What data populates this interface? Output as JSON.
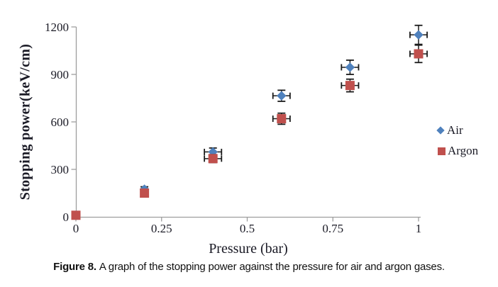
{
  "figure": {
    "caption_label": "Figure 8.",
    "caption_text": "A graph of the stopping power against the pressure for air and argon gases."
  },
  "chart_data": {
    "type": "scatter",
    "title": "",
    "xlabel": "Pressure (bar)",
    "ylabel": "Stopping power(keV/cm)",
    "xlim": [
      0,
      1
    ],
    "ylim": [
      0,
      1200
    ],
    "x_ticks": [
      "0",
      "0.25",
      "0.5",
      "0.75",
      "1"
    ],
    "y_ticks": [
      "0",
      "300",
      "600",
      "900",
      "1200"
    ],
    "grid": false,
    "legend_position": "right",
    "x": [
      0,
      0.2,
      0.4,
      0.6,
      0.8,
      1.0
    ],
    "series": [
      {
        "name": "Air",
        "marker": "diamond",
        "color": "#4F81BD",
        "values": [
          10,
          175,
          410,
          765,
          945,
          1150
        ],
        "y_err": [
          0,
          15,
          25,
          35,
          45,
          60
        ],
        "x_err": [
          0,
          0,
          0.025,
          0.025,
          0.025,
          0.025
        ]
      },
      {
        "name": "Argon",
        "marker": "square",
        "color": "#C0504D",
        "values": [
          10,
          150,
          368,
          620,
          830,
          1030
        ],
        "y_err": [
          0,
          15,
          25,
          35,
          40,
          55
        ],
        "x_err": [
          0,
          0,
          0.025,
          0.025,
          0.025,
          0.025
        ]
      }
    ]
  },
  "colors": {
    "air": "#4F81BD",
    "argon": "#C0504D",
    "axis": "#9e9e9e",
    "error_bar": "#1a1a1a",
    "tick_text": "#1b1b26",
    "background": "#ffffff"
  }
}
